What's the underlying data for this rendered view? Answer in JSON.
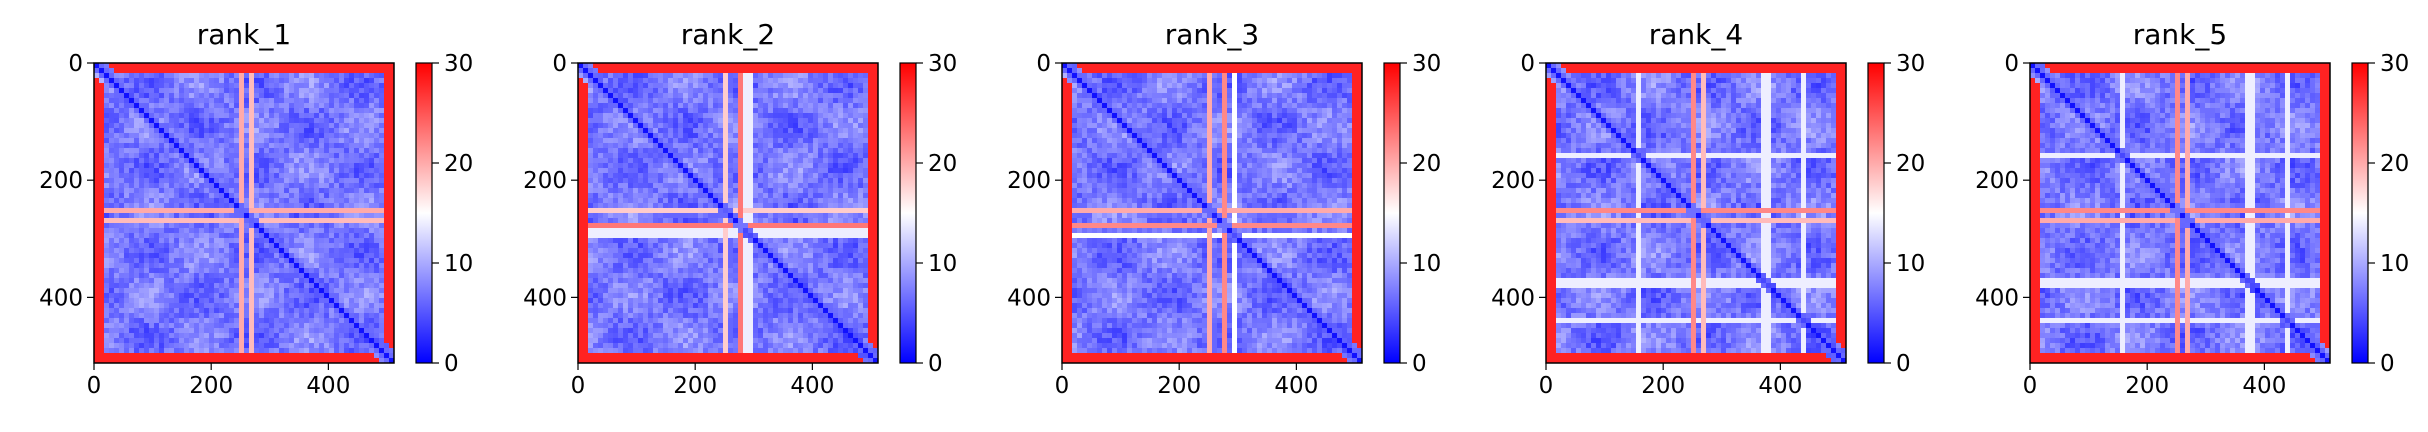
{
  "chart_data": [
    {
      "type": "heatmap",
      "title": "rank_1",
      "xlim": [
        0,
        512
      ],
      "ylim": [
        512,
        0
      ],
      "x_ticks": [
        0,
        200,
        400
      ],
      "y_ticks": [
        0,
        200,
        400
      ],
      "colorbar": {
        "min": 0,
        "max": 30,
        "ticks": [
          0,
          10,
          20,
          30
        ],
        "colormap": [
          "#0000ff",
          "#ffffff",
          "#ff0000"
        ]
      },
      "bands": [
        {
          "pos": 250,
          "value": 20
        },
        {
          "pos": 255,
          "value": 6
        },
        {
          "pos": 272,
          "value": 19
        }
      ]
    },
    {
      "type": "heatmap",
      "title": "rank_2",
      "xlim": [
        0,
        512
      ],
      "ylim": [
        512,
        0
      ],
      "x_ticks": [
        0,
        200,
        400
      ],
      "y_ticks": [
        0,
        200,
        400
      ],
      "colorbar": {
        "min": 0,
        "max": 30,
        "ticks": [
          0,
          10,
          20,
          30
        ],
        "colormap": [
          "#0000ff",
          "#ffffff",
          "#ff0000"
        ]
      },
      "bands": [
        {
          "pos": 250,
          "value": 18
        },
        {
          "pos": 256,
          "value": 6
        },
        {
          "pos": 274,
          "value": 23
        },
        {
          "pos": 290,
          "value": 14
        }
      ]
    },
    {
      "type": "heatmap",
      "title": "rank_3",
      "xlim": [
        0,
        512
      ],
      "ylim": [
        512,
        0
      ],
      "x_ticks": [
        0,
        200,
        400
      ],
      "y_ticks": [
        0,
        200,
        400
      ],
      "colorbar": {
        "min": 0,
        "max": 30,
        "ticks": [
          0,
          10,
          20,
          30
        ],
        "colormap": [
          "#0000ff",
          "#ffffff",
          "#ff0000"
        ]
      },
      "bands": [
        {
          "pos": 250,
          "value": 20
        },
        {
          "pos": 258,
          "value": 6
        },
        {
          "pos": 276,
          "value": 22
        },
        {
          "pos": 292,
          "value": 15
        }
      ]
    },
    {
      "type": "heatmap",
      "title": "rank_4",
      "xlim": [
        0,
        512
      ],
      "ylim": [
        512,
        0
      ],
      "x_ticks": [
        0,
        200,
        400
      ],
      "y_ticks": [
        0,
        200,
        400
      ],
      "colorbar": {
        "min": 0,
        "max": 30,
        "ticks": [
          0,
          10,
          20,
          30
        ],
        "colormap": [
          "#0000ff",
          "#ffffff",
          "#ff0000"
        ]
      },
      "bands": [
        {
          "pos": 160,
          "value": 14
        },
        {
          "pos": 250,
          "value": 22
        },
        {
          "pos": 268,
          "value": 19
        },
        {
          "pos": 375,
          "value": 14
        },
        {
          "pos": 440,
          "value": 14
        }
      ]
    },
    {
      "type": "heatmap",
      "title": "rank_5",
      "xlim": [
        0,
        512
      ],
      "ylim": [
        512,
        0
      ],
      "x_ticks": [
        0,
        200,
        400
      ],
      "y_ticks": [
        0,
        200,
        400
      ],
      "colorbar": {
        "min": 0,
        "max": 30,
        "ticks": [
          0,
          10,
          20,
          30
        ],
        "colormap": [
          "#0000ff",
          "#ffffff",
          "#ff0000"
        ]
      },
      "bands": [
        {
          "pos": 160,
          "value": 14
        },
        {
          "pos": 250,
          "value": 22
        },
        {
          "pos": 268,
          "value": 20
        },
        {
          "pos": 375,
          "value": 14
        },
        {
          "pos": 440,
          "value": 14
        }
      ]
    }
  ]
}
